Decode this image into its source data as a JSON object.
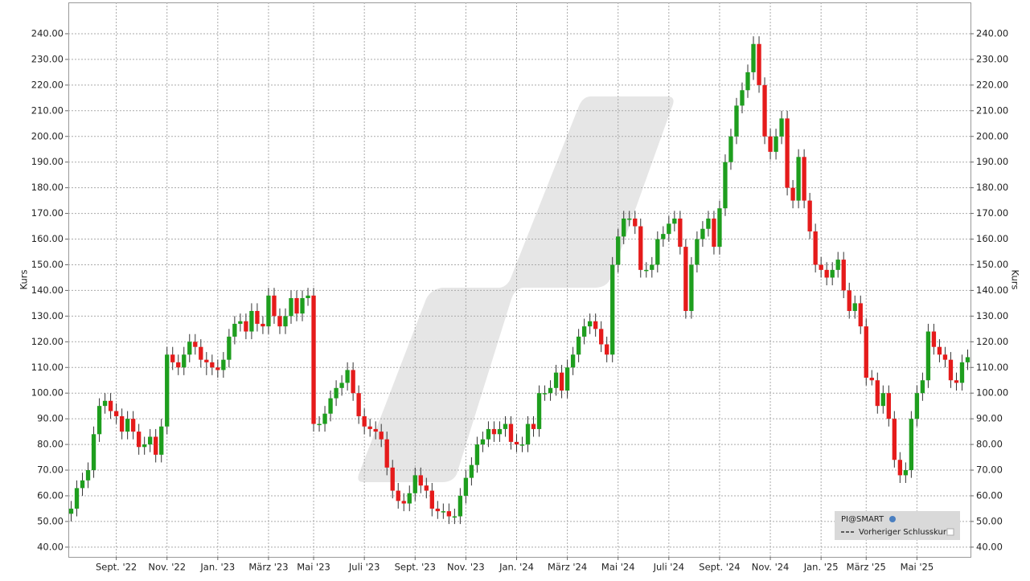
{
  "chart_data": {
    "type": "candlestick",
    "ylabel": "Kurs",
    "y2label": "Kurs",
    "legend": {
      "items": [
        "PI@SMART",
        "Vorheriger Schlusskurs"
      ],
      "position": "lower right"
    },
    "up_color": "#1e9e1e",
    "down_color": "#e51b1b",
    "grid": true,
    "ylim": [
      36.2,
      252.2
    ],
    "yticks": [
      {
        "value": 40,
        "label": "40.00"
      },
      {
        "value": 50,
        "label": "50.00"
      },
      {
        "value": 60,
        "label": "60.00"
      },
      {
        "value": 70,
        "label": "70.00"
      },
      {
        "value": 80,
        "label": "80.00"
      },
      {
        "value": 90,
        "label": "90.00"
      },
      {
        "value": 100,
        "label": "100.00"
      },
      {
        "value": 110,
        "label": "110.00"
      },
      {
        "value": 120,
        "label": "120.00"
      },
      {
        "value": 130,
        "label": "130.00"
      },
      {
        "value": 140,
        "label": "140.00"
      },
      {
        "value": 150,
        "label": "150.00"
      },
      {
        "value": 160,
        "label": "160.00"
      },
      {
        "value": 170,
        "label": "170.00"
      },
      {
        "value": 180,
        "label": "180.00"
      },
      {
        "value": 190,
        "label": "190.00"
      },
      {
        "value": 200,
        "label": "200.00"
      },
      {
        "value": 210,
        "label": "210.00"
      },
      {
        "value": 220,
        "label": "220.00"
      },
      {
        "value": 230,
        "label": "230.00"
      },
      {
        "value": 240,
        "label": "240.00"
      }
    ],
    "categories": [
      null,
      null,
      null,
      null,
      null,
      null,
      null,
      null,
      "Sept. '22",
      null,
      null,
      null,
      null,
      null,
      null,
      null,
      null,
      "Nov. '22",
      null,
      null,
      null,
      null,
      null,
      null,
      null,
      null,
      "Jan. '23",
      null,
      null,
      null,
      null,
      null,
      null,
      null,
      null,
      "März '23",
      null,
      null,
      null,
      null,
      null,
      null,
      null,
      "Mai '23",
      null,
      null,
      null,
      null,
      null,
      null,
      null,
      null,
      "Juli '23",
      null,
      null,
      null,
      null,
      null,
      null,
      null,
      null,
      "Sept. '23",
      null,
      null,
      null,
      null,
      null,
      null,
      null,
      null,
      "Nov. '23",
      null,
      null,
      null,
      null,
      null,
      null,
      null,
      null,
      "Jan. '24",
      null,
      null,
      null,
      null,
      null,
      null,
      null,
      null,
      "März '24",
      null,
      null,
      null,
      null,
      null,
      null,
      null,
      null,
      "Mai '24",
      null,
      null,
      null,
      null,
      null,
      null,
      null,
      null,
      "Juli '24",
      null,
      null,
      null,
      null,
      null,
      null,
      null,
      null,
      "Sept. '24",
      null,
      null,
      null,
      null,
      null,
      null,
      null,
      null,
      "Nov. '24",
      null,
      null,
      null,
      null,
      null,
      null,
      null,
      null,
      "Jan. '25",
      null,
      null,
      null,
      null,
      null,
      null,
      null,
      "März '25",
      null,
      null,
      null,
      null,
      null,
      null,
      null,
      null,
      "Mai '25",
      null,
      null,
      null,
      null,
      null,
      null,
      null,
      null,
      null
    ],
    "open": [
      53,
      55,
      63,
      66,
      70,
      84,
      95,
      97,
      93,
      91,
      85,
      90,
      85,
      79,
      80,
      83,
      76,
      87,
      115,
      112,
      110,
      115,
      120,
      118,
      113,
      112,
      110,
      109,
      113,
      122,
      127,
      128,
      124,
      132,
      127,
      126,
      138,
      130,
      126,
      130,
      137,
      131,
      137,
      138,
      88,
      88,
      92,
      98,
      102,
      104,
      109,
      100,
      91,
      87,
      86,
      85,
      82,
      71,
      62,
      58,
      57,
      61,
      68,
      64,
      62,
      55,
      54,
      54,
      52,
      52,
      60,
      67,
      72,
      80,
      82,
      86,
      84,
      86,
      88,
      81,
      80,
      80,
      88,
      86,
      100,
      100,
      102,
      108,
      101,
      110,
      115,
      122,
      126,
      128,
      125,
      119,
      115,
      150,
      161,
      168,
      168,
      165,
      148,
      148,
      150,
      160,
      162,
      166,
      168,
      157,
      132,
      150,
      160,
      164,
      168,
      157,
      172,
      190,
      200,
      212,
      218,
      225,
      236,
      220,
      200,
      194,
      200,
      207,
      180,
      175,
      192,
      175,
      163,
      150,
      148,
      145,
      148,
      152,
      140,
      132,
      135,
      126,
      106,
      105,
      95,
      100,
      90,
      74,
      68,
      70,
      90,
      100,
      105,
      124,
      118,
      115,
      113,
      105,
      104,
      112
    ],
    "high": [
      58,
      66,
      69,
      73,
      87,
      98,
      100,
      100,
      96,
      94,
      93,
      93,
      88,
      83,
      86,
      86,
      90,
      118,
      118,
      115,
      118,
      123,
      123,
      121,
      116,
      115,
      113,
      116,
      125,
      130,
      131,
      131,
      135,
      135,
      130,
      141,
      141,
      133,
      133,
      140,
      140,
      140,
      141,
      141,
      91,
      95,
      101,
      105,
      107,
      112,
      112,
      103,
      94,
      90,
      89,
      88,
      85,
      74,
      65,
      61,
      64,
      71,
      71,
      67,
      65,
      58,
      57,
      57,
      55,
      63,
      70,
      75,
      83,
      85,
      89,
      89,
      89,
      91,
      91,
      84,
      83,
      91,
      91,
      103,
      103,
      105,
      111,
      111,
      113,
      118,
      125,
      129,
      131,
      131,
      128,
      122,
      153,
      164,
      171,
      171,
      171,
      168,
      151,
      153,
      163,
      165,
      169,
      171,
      171,
      160,
      153,
      163,
      167,
      171,
      171,
      175,
      193,
      203,
      215,
      221,
      228,
      239,
      239,
      223,
      203,
      203,
      210,
      210,
      183,
      195,
      195,
      178,
      166,
      153,
      151,
      151,
      155,
      155,
      143,
      138,
      138,
      129,
      109,
      108,
      103,
      103,
      93,
      77,
      73,
      93,
      103,
      108,
      127,
      127,
      121,
      118,
      116,
      108,
      115,
      117
    ],
    "low": [
      50,
      52,
      60,
      63,
      67,
      81,
      92,
      90,
      88,
      82,
      82,
      82,
      76,
      76,
      77,
      73,
      73,
      84,
      109,
      107,
      107,
      112,
      115,
      110,
      107,
      107,
      106,
      106,
      110,
      119,
      124,
      121,
      121,
      124,
      123,
      123,
      127,
      123,
      123,
      127,
      128,
      128,
      134,
      85,
      85,
      85,
      89,
      95,
      99,
      101,
      97,
      88,
      84,
      83,
      82,
      79,
      68,
      59,
      55,
      54,
      54,
      58,
      61,
      59,
      52,
      51,
      51,
      49,
      49,
      49,
      57,
      64,
      69,
      77,
      79,
      81,
      81,
      83,
      78,
      77,
      77,
      77,
      83,
      83,
      97,
      97,
      99,
      98,
      98,
      107,
      112,
      119,
      123,
      122,
      116,
      112,
      112,
      147,
      158,
      165,
      162,
      145,
      145,
      145,
      147,
      157,
      159,
      163,
      154,
      129,
      129,
      147,
      157,
      161,
      154,
      154,
      169,
      187,
      197,
      209,
      215,
      222,
      217,
      197,
      191,
      191,
      197,
      177,
      172,
      172,
      172,
      160,
      147,
      145,
      142,
      142,
      145,
      137,
      129,
      129,
      123,
      103,
      103,
      92,
      92,
      87,
      71,
      65,
      65,
      67,
      87,
      97,
      102,
      115,
      112,
      110,
      102,
      101,
      101,
      109
    ],
    "close": [
      55,
      63,
      66,
      70,
      84,
      95,
      97,
      93,
      91,
      85,
      90,
      85,
      79,
      80,
      83,
      76,
      87,
      115,
      112,
      110,
      115,
      120,
      118,
      113,
      112,
      110,
      109,
      113,
      122,
      127,
      128,
      124,
      132,
      127,
      126,
      138,
      130,
      126,
      130,
      137,
      131,
      137,
      138,
      88,
      88,
      92,
      98,
      102,
      104,
      109,
      100,
      91,
      87,
      86,
      85,
      82,
      71,
      62,
      58,
      57,
      61,
      68,
      64,
      62,
      55,
      54,
      54,
      52,
      52,
      60,
      67,
      72,
      80,
      82,
      86,
      84,
      86,
      88,
      81,
      80,
      80,
      88,
      86,
      100,
      100,
      102,
      108,
      101,
      110,
      115,
      122,
      126,
      128,
      125,
      119,
      115,
      150,
      161,
      168,
      168,
      165,
      148,
      148,
      150,
      160,
      162,
      166,
      168,
      157,
      132,
      150,
      160,
      164,
      168,
      157,
      172,
      190,
      200,
      212,
      218,
      225,
      236,
      220,
      200,
      194,
      200,
      207,
      180,
      175,
      192,
      175,
      163,
      150,
      148,
      145,
      148,
      152,
      140,
      132,
      135,
      126,
      106,
      105,
      95,
      100,
      90,
      74,
      68,
      70,
      90,
      100,
      105,
      124,
      118,
      115,
      113,
      105,
      104,
      112,
      114
    ]
  }
}
